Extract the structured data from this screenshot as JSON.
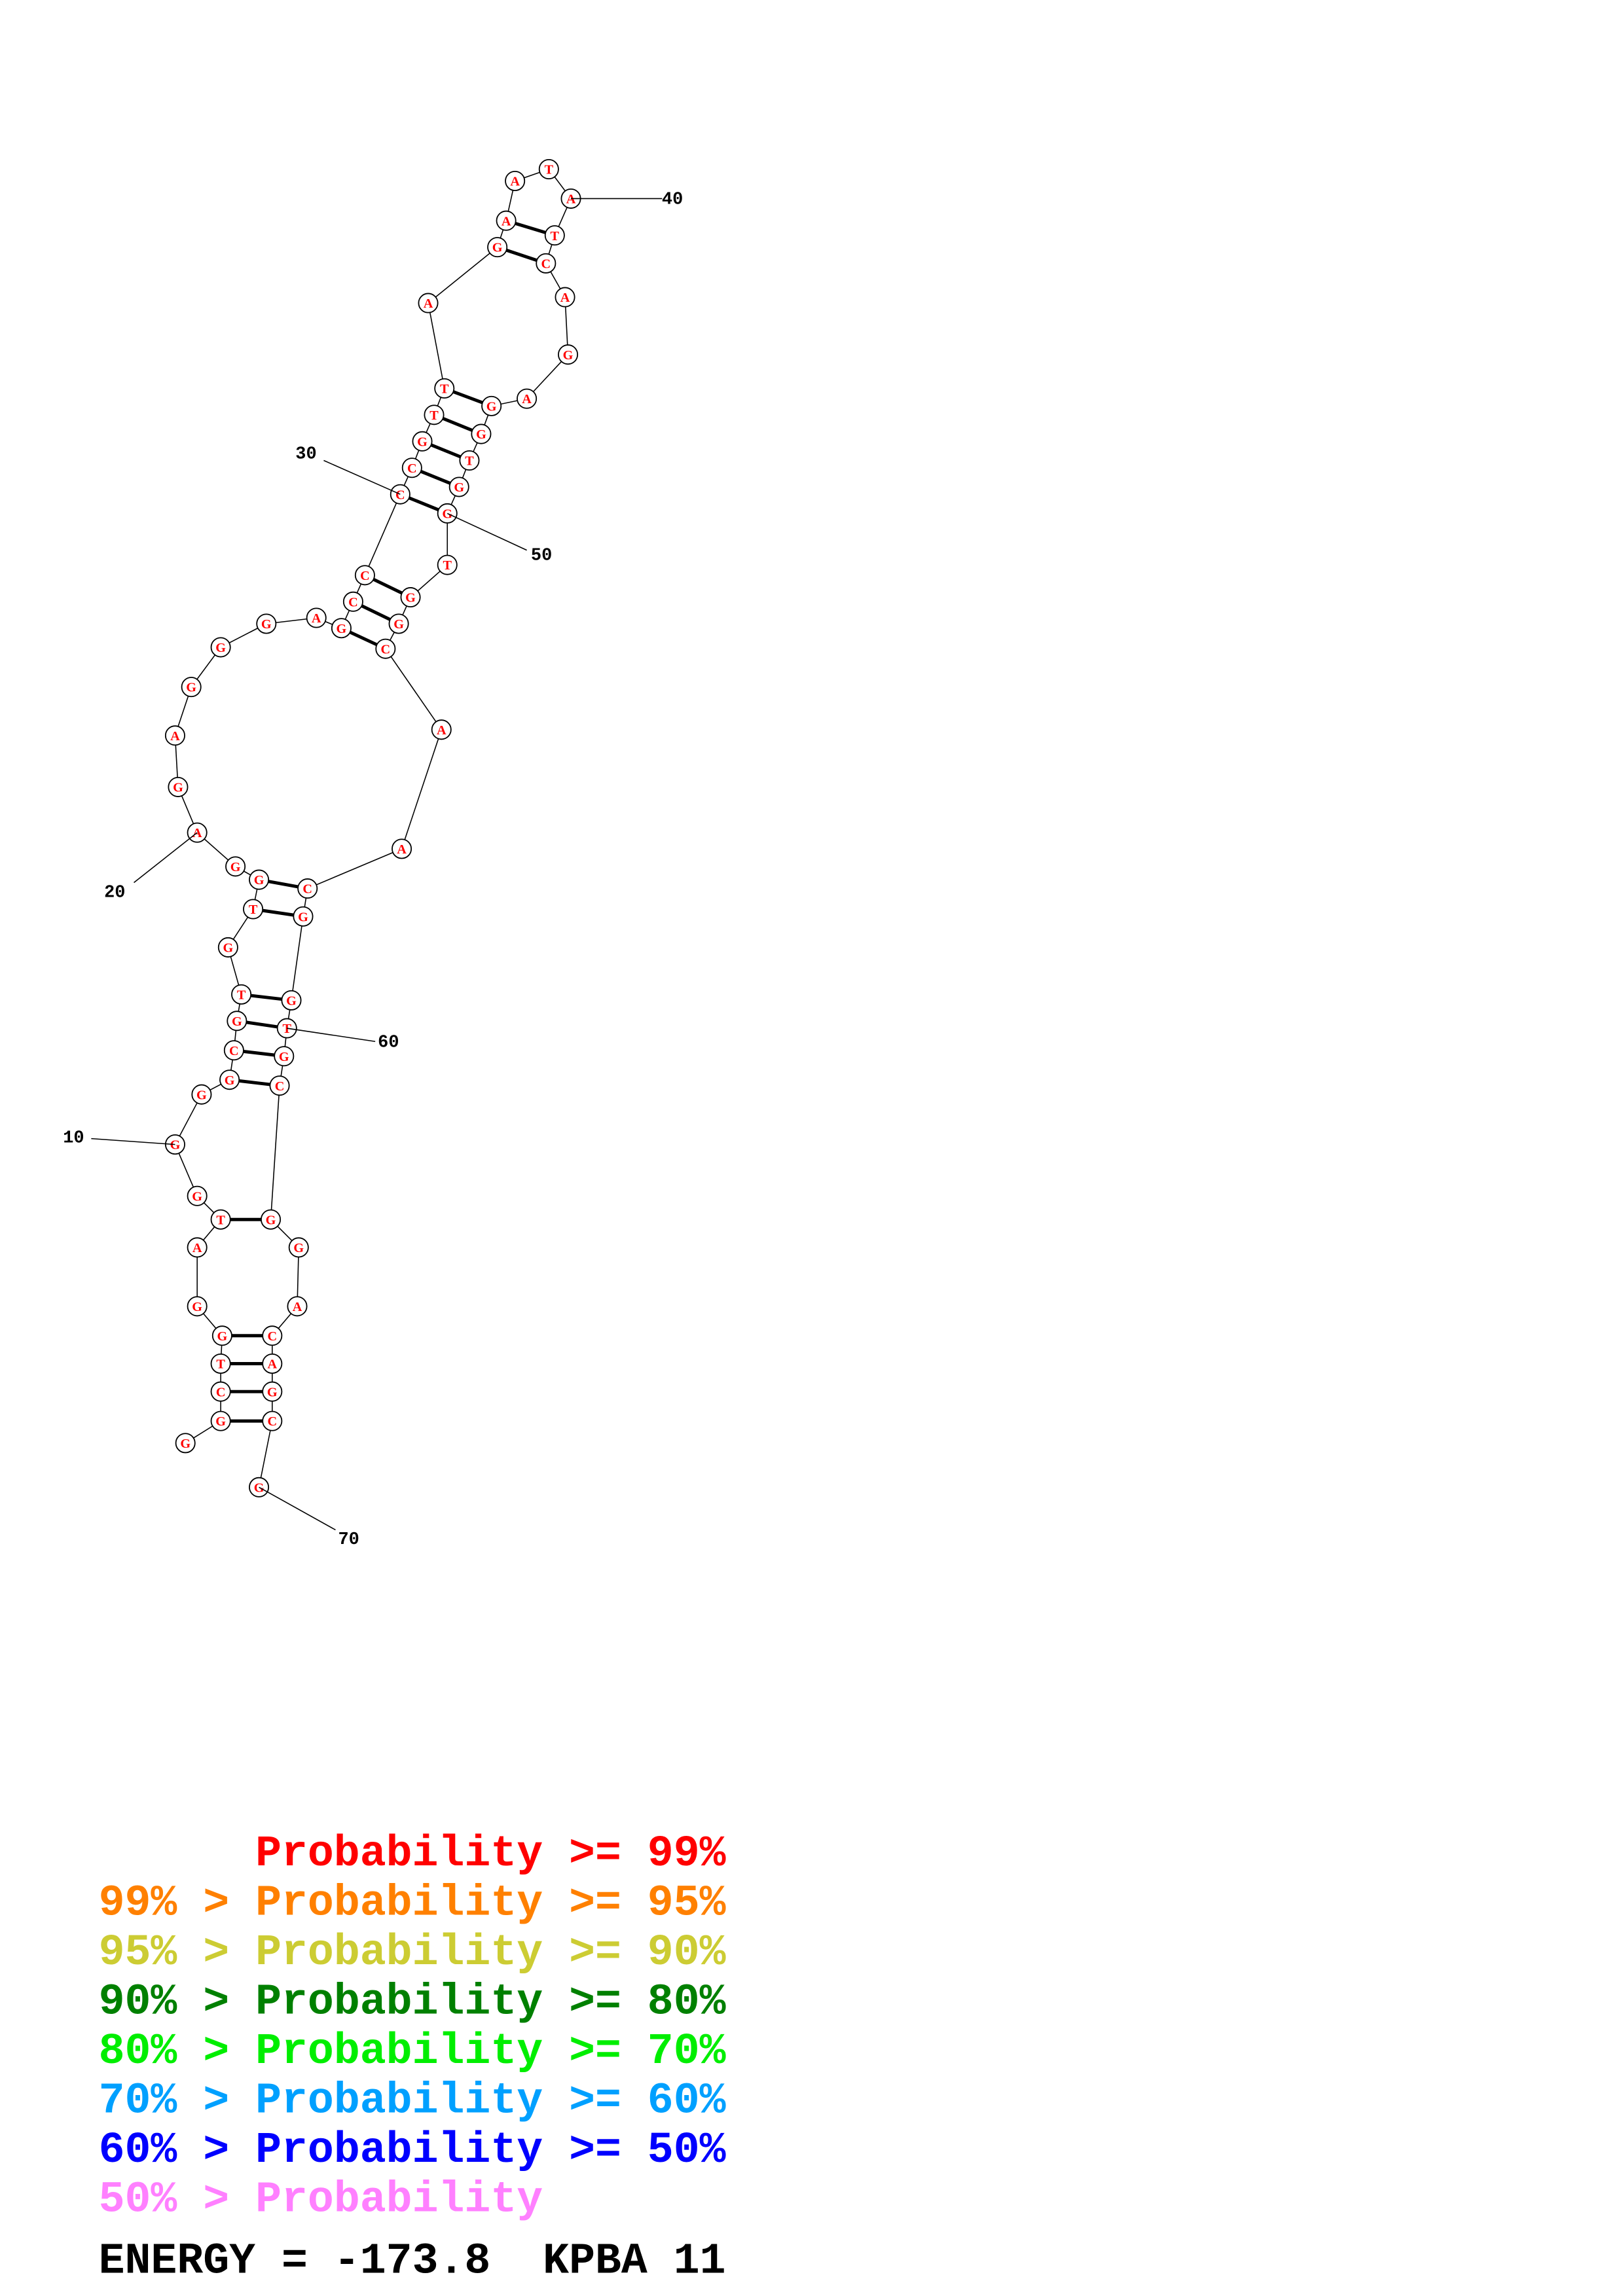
{
  "nucleotides": [
    "G",
    "G",
    "C",
    "T",
    "G",
    "G",
    "A",
    "T",
    "G",
    "G",
    "G",
    "G",
    "C",
    "G",
    "T",
    "G",
    "T",
    "G",
    "G",
    "A",
    "G",
    "A",
    "G",
    "G",
    "G",
    "A",
    "G",
    "C",
    "C",
    "C",
    "C",
    "G",
    "T",
    "T",
    "A",
    "G",
    "A",
    "A",
    "T",
    "A",
    "T",
    "C",
    "A",
    "G",
    "A",
    "G",
    "G",
    "T",
    "G",
    "G",
    "T",
    "G",
    "G",
    "C",
    "A",
    "A",
    "C",
    "G",
    "G",
    "T",
    "G",
    "C",
    "G",
    "G",
    "A",
    "C",
    "A",
    "G",
    "C",
    "G"
  ],
  "position_labels": [
    10,
    20,
    30,
    40,
    50,
    60,
    70
  ],
  "legend": [
    {
      "text": "Probability >= 99%",
      "color": "#ff0000"
    },
    {
      "text": "99% > Probability >= 95%",
      "color": "#ff8000"
    },
    {
      "text": "95% > Probability >= 90%",
      "color": "#cccc33"
    },
    {
      "text": "90% > Probability >= 80%",
      "color": "#008000"
    },
    {
      "text": "80% > Probability >= 70%",
      "color": "#00ee00"
    },
    {
      "text": "70% > Probability >= 60%",
      "color": "#00a0ff"
    },
    {
      "text": "60% > Probability >= 50%",
      "color": "#0000ff"
    },
    {
      "text": "50% > Probability",
      "color": "#ff80ff"
    }
  ],
  "energy": "ENERGY = -173.8  KPBA 11"
}
